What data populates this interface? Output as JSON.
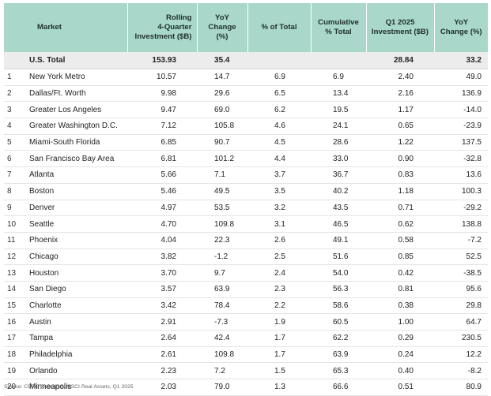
{
  "headers": {
    "market": "Market",
    "rolling": [
      "Rolling",
      "4-Quarter",
      "Investment ($B)"
    ],
    "yoy": [
      "YoY",
      "Change (%)"
    ],
    "pct_total": "% of Total",
    "cumulative": [
      "Cumulative",
      "% Total"
    ],
    "q1": [
      "Q1 2025",
      "Investment ($B)"
    ],
    "yoy2": [
      "YoY",
      "Change (%)"
    ]
  },
  "total": {
    "market": "U.S. Total",
    "rolling": "153.93",
    "yoy": "35.4",
    "pct_total": "",
    "cumulative": "",
    "q1": "28.84",
    "yoy2": "33.2"
  },
  "rows": [
    {
      "rank": "1",
      "market": "New York Metro",
      "rolling": "10.57",
      "yoy": "14.7",
      "pct_total": "6.9",
      "cumulative": "6.9",
      "q1": "2.40",
      "yoy2": "49.0"
    },
    {
      "rank": "2",
      "market": "Dallas/Ft. Worth",
      "rolling": "9.98",
      "yoy": "29.6",
      "pct_total": "6.5",
      "cumulative": "13.4",
      "q1": "2.16",
      "yoy2": "136.9"
    },
    {
      "rank": "3",
      "market": "Greater Los Angeles",
      "rolling": "9.47",
      "yoy": "69.0",
      "pct_total": "6.2",
      "cumulative": "19.5",
      "q1": "1.17",
      "yoy2": "-14.0"
    },
    {
      "rank": "4",
      "market": "Greater Washington D.C.",
      "rolling": "7.12",
      "yoy": "105.8",
      "pct_total": "4.6",
      "cumulative": "24.1",
      "q1": "0.65",
      "yoy2": "-23.9"
    },
    {
      "rank": "5",
      "market": "Miami-South Florida",
      "rolling": "6.85",
      "yoy": "90.7",
      "pct_total": "4.5",
      "cumulative": "28.6",
      "q1": "1.22",
      "yoy2": "137.5"
    },
    {
      "rank": "6",
      "market": "San Francisco Bay Area",
      "rolling": "6.81",
      "yoy": "101.2",
      "pct_total": "4.4",
      "cumulative": "33.0",
      "q1": "0.90",
      "yoy2": "-32.8"
    },
    {
      "rank": "7",
      "market": "Atlanta",
      "rolling": "5.66",
      "yoy": "7.1",
      "pct_total": "3.7",
      "cumulative": "36.7",
      "q1": "0.83",
      "yoy2": "13.6"
    },
    {
      "rank": "8",
      "market": "Boston",
      "rolling": "5.46",
      "yoy": "49.5",
      "pct_total": "3.5",
      "cumulative": "40.2",
      "q1": "1.18",
      "yoy2": "100.3"
    },
    {
      "rank": "9",
      "market": "Denver",
      "rolling": "4.97",
      "yoy": "53.5",
      "pct_total": "3.2",
      "cumulative": "43.5",
      "q1": "0.71",
      "yoy2": "-29.2"
    },
    {
      "rank": "10",
      "market": "Seattle",
      "rolling": "4.70",
      "yoy": "109.8",
      "pct_total": "3.1",
      "cumulative": "46.5",
      "q1": "0.62",
      "yoy2": "138.8"
    },
    {
      "rank": "11",
      "market": "Phoenix",
      "rolling": "4.04",
      "yoy": "22.3",
      "pct_total": "2.6",
      "cumulative": "49.1",
      "q1": "0.58",
      "yoy2": "-7.2"
    },
    {
      "rank": "12",
      "market": "Chicago",
      "rolling": "3.82",
      "yoy": "-1.2",
      "pct_total": "2.5",
      "cumulative": "51.6",
      "q1": "0.85",
      "yoy2": "52.5"
    },
    {
      "rank": "13",
      "market": "Houston",
      "rolling": "3.70",
      "yoy": "9.7",
      "pct_total": "2.4",
      "cumulative": "54.0",
      "q1": "0.42",
      "yoy2": "-38.5"
    },
    {
      "rank": "14",
      "market": "San Diego",
      "rolling": "3.57",
      "yoy": "63.9",
      "pct_total": "2.3",
      "cumulative": "56.3",
      "q1": "0.81",
      "yoy2": "95.6"
    },
    {
      "rank": "15",
      "market": "Charlotte",
      "rolling": "3.42",
      "yoy": "78.4",
      "pct_total": "2.2",
      "cumulative": "58.6",
      "q1": "0.38",
      "yoy2": "29.8"
    },
    {
      "rank": "16",
      "market": "Austin",
      "rolling": "2.91",
      "yoy": "-7.3",
      "pct_total": "1.9",
      "cumulative": "60.5",
      "q1": "1.00",
      "yoy2": "64.7"
    },
    {
      "rank": "17",
      "market": "Tampa",
      "rolling": "2.64",
      "yoy": "42.4",
      "pct_total": "1.7",
      "cumulative": "62.2",
      "q1": "0.29",
      "yoy2": "230.5"
    },
    {
      "rank": "18",
      "market": "Philadelphia",
      "rolling": "2.61",
      "yoy": "109.8",
      "pct_total": "1.7",
      "cumulative": "63.9",
      "q1": "0.24",
      "yoy2": "12.2"
    },
    {
      "rank": "19",
      "market": "Orlando",
      "rolling": "2.23",
      "yoy": "7.2",
      "pct_total": "1.5",
      "cumulative": "65.3",
      "q1": "0.40",
      "yoy2": "-8.2"
    },
    {
      "rank": "20",
      "market": "Minneapolis",
      "rolling": "2.03",
      "yoy": "79.0",
      "pct_total": "1.3",
      "cumulative": "66.6",
      "q1": "0.51",
      "yoy2": "80.9"
    }
  ],
  "source": "Source: CBRE Research, MSCI Real Assets, Q1 2025",
  "colors": {
    "header_bg": "#a9d8cb",
    "total_bg": "#ececec"
  }
}
